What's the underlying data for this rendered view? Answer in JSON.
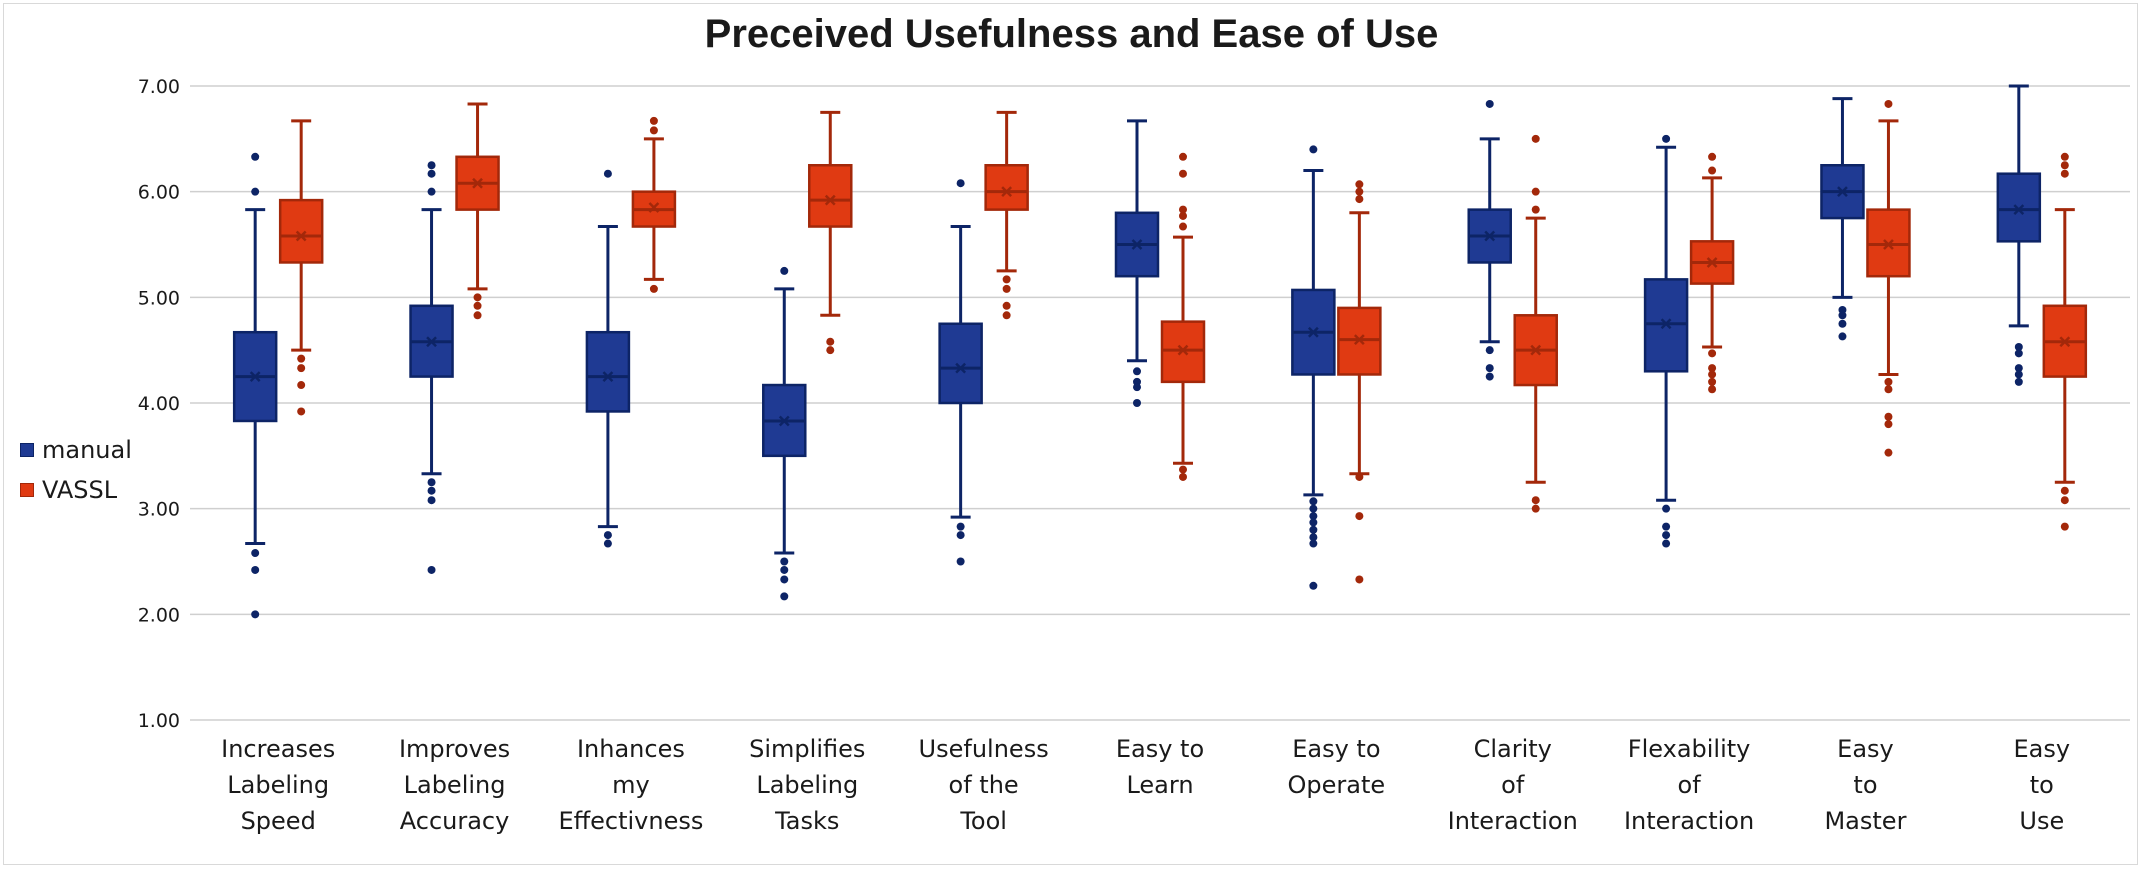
{
  "chart_data": {
    "type": "box",
    "title": "Preceived Usefulness and Ease of Use",
    "xlabel": "",
    "ylabel": "",
    "ylim": [
      1.0,
      7.0
    ],
    "yticks": [
      "1.00",
      "2.00",
      "3.00",
      "4.00",
      "5.00",
      "6.00",
      "7.00"
    ],
    "grid": "horizontal",
    "legend_position": "left",
    "categories": [
      [
        "Increases",
        "Labeling",
        "Speed"
      ],
      [
        "Improves",
        "Labeling",
        "Accuracy"
      ],
      [
        "Inhances",
        "my",
        "Effectivness"
      ],
      [
        "Simplifies",
        "Labeling",
        "Tasks"
      ],
      [
        "Usefulness",
        "of the",
        "Tool"
      ],
      [
        "Easy to",
        "Learn"
      ],
      [
        "Easy to",
        "Operate"
      ],
      [
        "Clarity",
        "of",
        "Interaction"
      ],
      [
        "Flexability",
        "of",
        "Interaction"
      ],
      [
        "Easy",
        "to",
        "Master"
      ],
      [
        "Easy",
        "to",
        "Use"
      ]
    ],
    "series": [
      {
        "name": "manual",
        "color": "#1f3a93",
        "stroke": "#0d2466",
        "boxes": [
          {
            "q1": 3.83,
            "median": 4.25,
            "q3": 4.67,
            "mean": 4.25,
            "low": 2.67,
            "high": 5.83,
            "outliers": [
              2.58,
              2.42,
              2.0,
              6.0,
              6.33
            ]
          },
          {
            "q1": 4.25,
            "median": 4.58,
            "q3": 4.92,
            "mean": 4.58,
            "low": 3.33,
            "high": 5.83,
            "outliers": [
              3.25,
              3.17,
              3.08,
              2.42,
              6.0,
              6.17,
              6.25
            ]
          },
          {
            "q1": 3.92,
            "median": 4.25,
            "q3": 4.67,
            "mean": 4.25,
            "low": 2.83,
            "high": 5.67,
            "outliers": [
              2.75,
              2.67,
              6.17
            ]
          },
          {
            "q1": 3.5,
            "median": 3.83,
            "q3": 4.17,
            "mean": 3.83,
            "low": 2.58,
            "high": 5.08,
            "outliers": [
              2.5,
              2.42,
              2.33,
              2.17,
              5.25
            ]
          },
          {
            "q1": 4.0,
            "median": 4.33,
            "q3": 4.75,
            "mean": 4.33,
            "low": 2.92,
            "high": 5.67,
            "outliers": [
              2.83,
              2.75,
              2.5,
              6.08
            ]
          },
          {
            "q1": 5.2,
            "median": 5.5,
            "q3": 5.8,
            "mean": 5.5,
            "low": 4.4,
            "high": 6.67,
            "outliers": [
              4.3,
              4.2,
              4.15,
              4.0
            ]
          },
          {
            "q1": 4.27,
            "median": 4.67,
            "q3": 5.07,
            "mean": 4.67,
            "low": 3.13,
            "high": 6.2,
            "outliers": [
              3.07,
              3.0,
              2.93,
              2.87,
              2.8,
              2.73,
              2.67,
              2.27,
              6.4
            ]
          },
          {
            "q1": 5.33,
            "median": 5.58,
            "q3": 5.83,
            "mean": 5.58,
            "low": 4.58,
            "high": 6.5,
            "outliers": [
              4.5,
              4.33,
              4.25,
              6.83
            ]
          },
          {
            "q1": 4.3,
            "median": 4.75,
            "q3": 5.17,
            "mean": 4.75,
            "low": 3.08,
            "high": 6.42,
            "outliers": [
              3.0,
              2.83,
              2.75,
              2.67,
              6.5
            ]
          },
          {
            "q1": 5.75,
            "median": 6.0,
            "q3": 6.25,
            "mean": 6.0,
            "low": 5.0,
            "high": 6.88,
            "outliers": [
              4.88,
              4.83,
              4.75,
              4.63
            ]
          },
          {
            "q1": 5.53,
            "median": 5.83,
            "q3": 6.17,
            "mean": 5.83,
            "low": 4.73,
            "high": 7.0,
            "outliers": [
              4.53,
              4.47,
              4.33,
              4.27,
              4.2
            ]
          }
        ]
      },
      {
        "name": "VASSL",
        "color": "#e03a12",
        "stroke": "#a3280a",
        "boxes": [
          {
            "q1": 5.33,
            "median": 5.58,
            "q3": 5.92,
            "mean": 5.58,
            "low": 4.5,
            "high": 6.67,
            "outliers": [
              4.42,
              4.33,
              4.17,
              3.92
            ]
          },
          {
            "q1": 5.83,
            "median": 6.08,
            "q3": 6.33,
            "mean": 6.08,
            "low": 5.08,
            "high": 6.83,
            "outliers": [
              5.0,
              4.92,
              4.83
            ]
          },
          {
            "q1": 5.67,
            "median": 5.83,
            "q3": 6.0,
            "mean": 5.85,
            "low": 5.17,
            "high": 6.5,
            "outliers": [
              5.08,
              6.58,
              6.67
            ]
          },
          {
            "q1": 5.67,
            "median": 5.92,
            "q3": 6.25,
            "mean": 5.92,
            "low": 4.83,
            "high": 6.75,
            "outliers": [
              4.58,
              4.5
            ]
          },
          {
            "q1": 5.83,
            "median": 6.0,
            "q3": 6.25,
            "mean": 6.0,
            "low": 5.25,
            "high": 6.75,
            "outliers": [
              5.17,
              5.08,
              4.92,
              4.83
            ]
          },
          {
            "q1": 4.2,
            "median": 4.5,
            "q3": 4.77,
            "mean": 4.5,
            "low": 3.43,
            "high": 5.57,
            "outliers": [
              3.37,
              3.3,
              5.67,
              5.77,
              5.83,
              6.17,
              6.33
            ]
          },
          {
            "q1": 4.27,
            "median": 4.6,
            "q3": 4.9,
            "mean": 4.6,
            "low": 3.33,
            "high": 5.8,
            "outliers": [
              3.3,
              2.93,
              2.33,
              5.93,
              6.0,
              6.07
            ]
          },
          {
            "q1": 4.17,
            "median": 4.5,
            "q3": 4.83,
            "mean": 4.5,
            "low": 3.25,
            "high": 5.75,
            "outliers": [
              3.08,
              3.0,
              5.83,
              6.0,
              6.5
            ]
          },
          {
            "q1": 5.13,
            "median": 5.33,
            "q3": 5.53,
            "mean": 5.33,
            "low": 4.53,
            "high": 6.13,
            "outliers": [
              4.47,
              4.33,
              4.27,
              4.2,
              4.13,
              6.2,
              6.33
            ]
          },
          {
            "q1": 5.2,
            "median": 5.5,
            "q3": 5.83,
            "mean": 5.5,
            "low": 4.27,
            "high": 6.67,
            "outliers": [
              4.2,
              4.13,
              3.87,
              3.8,
              3.53,
              6.83
            ]
          },
          {
            "q1": 4.25,
            "median": 4.58,
            "q3": 4.92,
            "mean": 4.58,
            "low": 3.25,
            "high": 5.83,
            "outliers": [
              3.17,
              3.08,
              2.83,
              6.17,
              6.25,
              6.33
            ]
          }
        ]
      }
    ]
  }
}
